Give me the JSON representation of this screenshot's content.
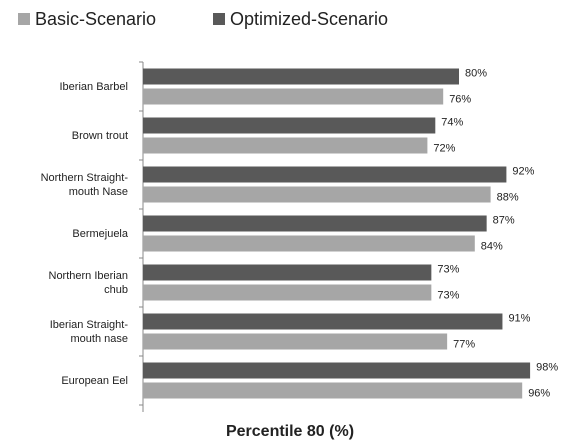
{
  "chart_data": {
    "type": "hbar",
    "title": "Percentile 80 (%)",
    "categories": [
      "Iberian Barbel",
      "Brown trout",
      "Northern Straight-\nmouth Nase",
      "Bermejuela",
      "Northern Iberian\nchub",
      "Iberian Straight-\nmouth nase",
      "European Eel"
    ],
    "series": [
      {
        "name": "Basic-Scenario",
        "color": "#a6a6a6",
        "values": [
          76,
          72,
          88,
          84,
          73,
          77,
          96
        ],
        "value_labels": [
          "76%",
          "72%",
          "88%",
          "84%",
          "73%",
          "77%",
          "96%"
        ]
      },
      {
        "name": "Optimized-Scenario",
        "color": "#595959",
        "values": [
          80,
          74,
          92,
          87,
          73,
          91,
          98
        ],
        "value_labels": [
          "80%",
          "74%",
          "92%",
          "87%",
          "73%",
          "91%",
          "98%"
        ]
      }
    ],
    "xlim": [
      0,
      100
    ],
    "legend": "top"
  }
}
